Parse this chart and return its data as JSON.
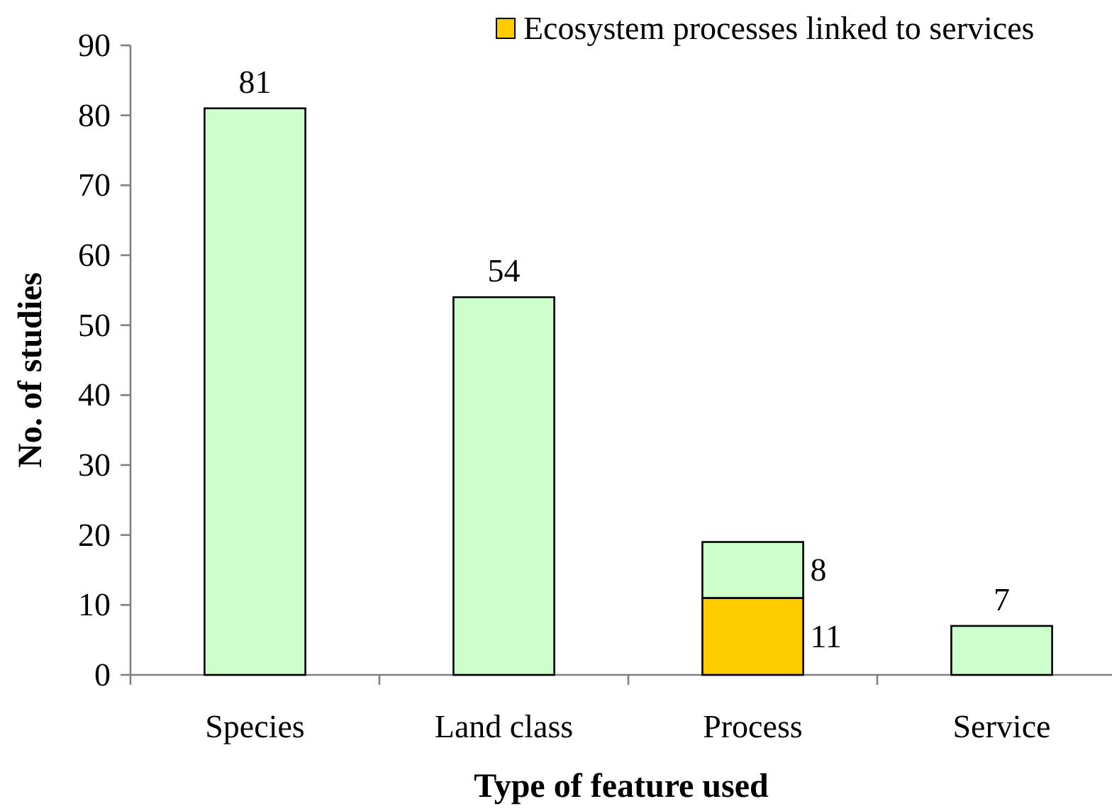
{
  "chart_data": {
    "type": "bar",
    "xlabel": "Type of feature used",
    "ylabel": "No. of studies",
    "categories": [
      "Species",
      "Land class",
      "Process",
      "Service"
    ],
    "stacked": true,
    "series": [
      {
        "name": "Ecosystem processes linked to services",
        "color": "#ffcc00",
        "values": [
          null,
          null,
          11,
          null
        ]
      },
      {
        "color": "#ccffcc",
        "values": [
          81,
          54,
          8,
          7
        ]
      }
    ],
    "ylim": [
      0,
      90
    ],
    "yticks": [
      0,
      10,
      20,
      30,
      40,
      50,
      60,
      70,
      80,
      90
    ],
    "data_labels": true,
    "legend": "top right"
  }
}
